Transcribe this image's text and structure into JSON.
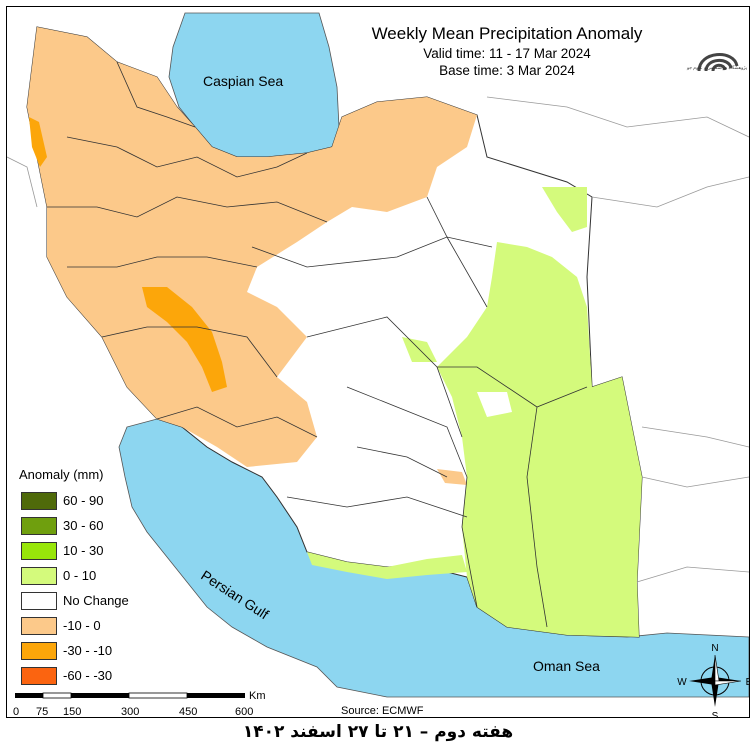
{
  "title": "Weekly Mean Precipitation Anomaly",
  "valid_time": "Valid time: 11 - 17 Mar 2024",
  "base_time": "Base time: 3 Mar 2024",
  "labels": {
    "caspian": "Caspian Sea",
    "persian_gulf": "Persian Gulf",
    "oman": "Oman Sea"
  },
  "legend": {
    "title": "Anomaly (mm)",
    "items": [
      {
        "label": "60 - 90",
        "color": "#4f6a0a"
      },
      {
        "label": "30 - 60",
        "color": "#6f9f0e"
      },
      {
        "label": "10 - 30",
        "color": "#98e60a"
      },
      {
        "label": "0 - 10",
        "color": "#d4fa7c"
      },
      {
        "label": "No Change",
        "color": "#ffffff"
      },
      {
        "label": "-10 - 0",
        "color": "#fcc98a"
      },
      {
        "label": "-30 - -10",
        "color": "#fca60a"
      },
      {
        "label": "-60 - -30",
        "color": "#fb6410"
      }
    ]
  },
  "scale": {
    "unit": "Km",
    "ticks": [
      "0",
      "75",
      "150",
      "300",
      "450",
      "600"
    ]
  },
  "source": "Source: ECMWF",
  "compass": {
    "n": "N",
    "s": "S",
    "e": "E",
    "w": "W"
  },
  "caption": "هفته دوم – ۲۱ تا ۲۷ اسفند ۱۴۰۲",
  "logo_text": "پژوهشگاه هواشناسی و علوم جو"
}
